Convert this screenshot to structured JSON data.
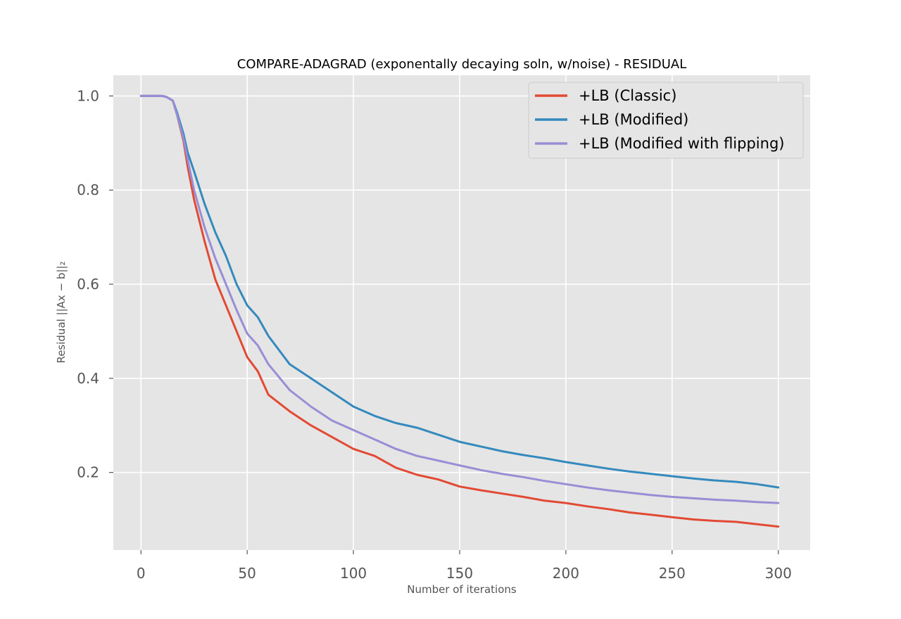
{
  "chart_data": {
    "type": "line",
    "title": "COMPARE-ADAGRAD (exponentally decaying soln, w/noise) - RESIDUAL",
    "xlabel": "Number of iterations",
    "ylabel": "Residual ||Ax − b||₂",
    "xlim": [
      -13,
      315
    ],
    "ylim": [
      0.035,
      1.044
    ],
    "xticks": [
      0,
      50,
      100,
      150,
      200,
      250,
      300
    ],
    "yticks": [
      0.2,
      0.4,
      0.6,
      0.8,
      1.0
    ],
    "xtick_labels": [
      "0",
      "50",
      "100",
      "150",
      "200",
      "250",
      "300"
    ],
    "ytick_labels": [
      "0.2",
      "0.4",
      "0.6",
      "0.8",
      "1.0"
    ],
    "grid": true,
    "legend_position": "top-right",
    "x": [
      0,
      10,
      12,
      15,
      17,
      20,
      22,
      25,
      30,
      35,
      40,
      45,
      50,
      55,
      60,
      70,
      80,
      90,
      100,
      110,
      120,
      130,
      140,
      150,
      160,
      170,
      180,
      190,
      200,
      210,
      220,
      230,
      240,
      250,
      260,
      270,
      280,
      290,
      300
    ],
    "series": [
      {
        "name": "+LB (Classic)",
        "color": "#E24A33",
        "values": [
          1.0,
          1.0,
          0.998,
          0.99,
          0.96,
          0.905,
          0.85,
          0.78,
          0.69,
          0.61,
          0.555,
          0.5,
          0.445,
          0.415,
          0.365,
          0.33,
          0.3,
          0.275,
          0.25,
          0.235,
          0.21,
          0.195,
          0.185,
          0.17,
          0.162,
          0.155,
          0.148,
          0.14,
          0.135,
          0.128,
          0.122,
          0.115,
          0.11,
          0.105,
          0.1,
          0.097,
          0.095,
          0.09,
          0.085
        ]
      },
      {
        "name": "+LB (Modified)",
        "color": "#348ABD",
        "values": [
          1.0,
          1.0,
          0.998,
          0.99,
          0.965,
          0.92,
          0.88,
          0.84,
          0.77,
          0.71,
          0.66,
          0.6,
          0.555,
          0.53,
          0.49,
          0.43,
          0.4,
          0.37,
          0.34,
          0.32,
          0.305,
          0.295,
          0.28,
          0.265,
          0.255,
          0.245,
          0.237,
          0.23,
          0.222,
          0.215,
          0.208,
          0.202,
          0.197,
          0.192,
          0.187,
          0.183,
          0.18,
          0.175,
          0.168
        ]
      },
      {
        "name": "+LB (Modified with flipping)",
        "color": "#988ED5",
        "values": [
          1.0,
          1.0,
          0.998,
          0.99,
          0.96,
          0.91,
          0.865,
          0.8,
          0.72,
          0.655,
          0.6,
          0.545,
          0.495,
          0.47,
          0.43,
          0.375,
          0.34,
          0.31,
          0.29,
          0.27,
          0.25,
          0.235,
          0.225,
          0.215,
          0.205,
          0.197,
          0.19,
          0.182,
          0.175,
          0.168,
          0.162,
          0.157,
          0.152,
          0.148,
          0.145,
          0.142,
          0.14,
          0.137,
          0.135
        ]
      }
    ]
  }
}
